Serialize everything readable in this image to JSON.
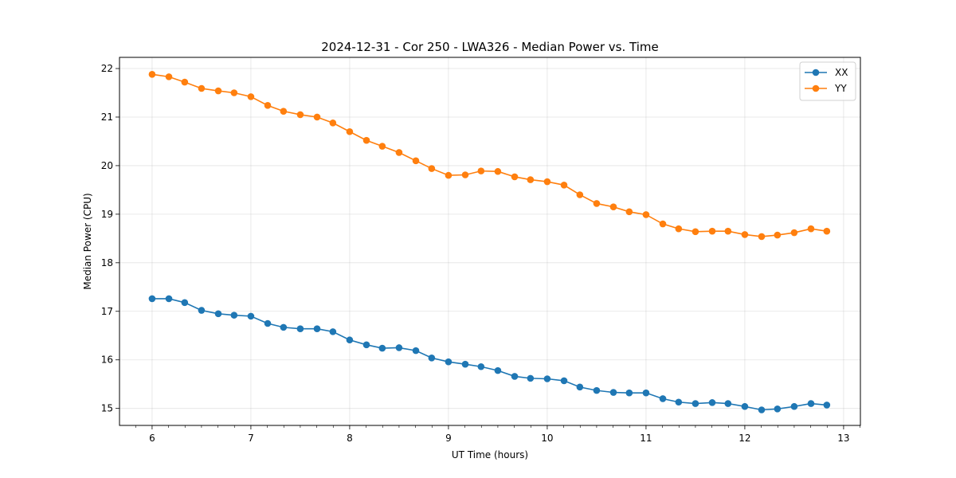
{
  "chart_data": {
    "type": "line",
    "title": "2024-12-31 - Cor 250 - LWA326 - Median Power vs. Time",
    "xlabel": "UT Time (hours)",
    "ylabel": "Median Power (CPU)",
    "xlim": [
      5.67,
      13.17
    ],
    "ylim": [
      14.65,
      22.23
    ],
    "xticks": [
      6,
      7,
      8,
      9,
      10,
      11,
      12,
      13
    ],
    "yticks": [
      15,
      16,
      17,
      18,
      19,
      20,
      21,
      22
    ],
    "grid": true,
    "legend_position": "top-right",
    "x": [
      6.0,
      6.17,
      6.33,
      6.5,
      6.67,
      6.83,
      7.0,
      7.17,
      7.33,
      7.5,
      7.67,
      7.83,
      8.0,
      8.17,
      8.33,
      8.5,
      8.67,
      8.83,
      9.0,
      9.17,
      9.33,
      9.5,
      9.67,
      9.83,
      10.0,
      10.17,
      10.33,
      10.5,
      10.67,
      10.83,
      11.0,
      11.17,
      11.33,
      11.5,
      11.67,
      11.83,
      12.0,
      12.17,
      12.33,
      12.5,
      12.67,
      12.83
    ],
    "series": [
      {
        "name": "XX",
        "color": "#1f77b4",
        "values": [
          17.26,
          17.26,
          17.18,
          17.02,
          16.95,
          16.92,
          16.9,
          16.75,
          16.67,
          16.64,
          16.64,
          16.58,
          16.41,
          16.31,
          16.24,
          16.25,
          16.19,
          16.04,
          15.96,
          15.91,
          15.86,
          15.78,
          15.66,
          15.62,
          15.61,
          15.57,
          15.44,
          15.37,
          15.33,
          15.32,
          15.32,
          15.2,
          15.13,
          15.1,
          15.12,
          15.1,
          15.04,
          14.97,
          14.99,
          15.04,
          15.1,
          15.07
        ]
      },
      {
        "name": "YY",
        "color": "#ff7f0e",
        "values": [
          21.88,
          21.83,
          21.72,
          21.59,
          21.54,
          21.5,
          21.42,
          21.24,
          21.12,
          21.05,
          21.0,
          20.88,
          20.7,
          20.52,
          20.4,
          20.27,
          20.1,
          19.94,
          19.8,
          19.81,
          19.89,
          19.88,
          19.77,
          19.71,
          19.67,
          19.6,
          19.4,
          19.22,
          19.15,
          19.05,
          18.99,
          18.8,
          18.7,
          18.64,
          18.65,
          18.65,
          18.58,
          18.54,
          18.57,
          18.62,
          18.7,
          18.65
        ]
      }
    ]
  }
}
